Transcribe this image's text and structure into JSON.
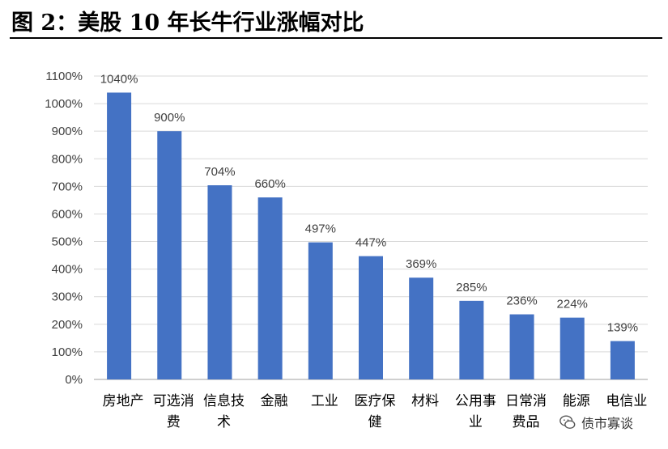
{
  "header": {
    "title": "图 2：美股 10 年长牛行业涨幅对比"
  },
  "watermark": {
    "text": "债市寡谈",
    "icon": "wechat-icon"
  },
  "colors": {
    "bar": "#4472C4",
    "grid": "#D9D9D9",
    "axis": "#BFBFBF",
    "text": "#404040"
  },
  "chart_data": {
    "type": "bar",
    "categories": [
      [
        "房地产"
      ],
      [
        "可选消",
        "费"
      ],
      [
        "信息技",
        "术"
      ],
      [
        "金融"
      ],
      [
        "工业"
      ],
      [
        "医疗保",
        "健"
      ],
      [
        "材料"
      ],
      [
        "公用事",
        "业"
      ],
      [
        "日常消",
        "费品"
      ],
      [
        "能源"
      ],
      [
        "电信业"
      ]
    ],
    "values": [
      1040,
      900,
      704,
      660,
      497,
      447,
      369,
      285,
      236,
      224,
      139
    ],
    "data_labels": [
      "1040%",
      "900%",
      "704%",
      "660%",
      "497%",
      "447%",
      "369%",
      "285%",
      "236%",
      "224%",
      "139%"
    ],
    "y_ticks": [
      "0%",
      "100%",
      "200%",
      "300%",
      "400%",
      "500%",
      "600%",
      "700%",
      "800%",
      "900%",
      "1000%",
      "1100%"
    ],
    "ylim": [
      0,
      1100
    ],
    "y_unit": "%",
    "grid": true,
    "legend": "none",
    "title": "",
    "xlabel": "",
    "ylabel": ""
  }
}
